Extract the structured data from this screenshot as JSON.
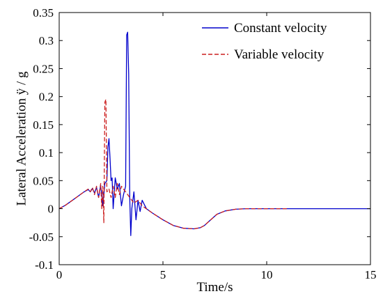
{
  "chart_data": {
    "type": "line",
    "xlabel": "Time/s",
    "ylabel": "Lateral Acceleration ÿ / g",
    "xlim": [
      0,
      15
    ],
    "ylim": [
      -0.1,
      0.35
    ],
    "xticks": [
      "0",
      "5",
      "10",
      "15"
    ],
    "yticks": [
      "-0.1",
      "-0.05",
      "0",
      "0.05",
      "0.1",
      "0.15",
      "0.2",
      "0.25",
      "0.3",
      "0.35"
    ],
    "grid": false,
    "legend_position": "top-right",
    "series": [
      {
        "name": "Constant velocity",
        "color": "#0000cc",
        "style": "solid",
        "x": [
          0,
          0.3,
          0.6,
          0.9,
          1.2,
          1.4,
          1.5,
          1.6,
          1.7,
          1.8,
          1.9,
          2.0,
          2.1,
          2.2,
          2.3,
          2.35,
          2.4,
          2.45,
          2.5,
          2.55,
          2.6,
          2.7,
          2.8,
          2.9,
          3.0,
          3.1,
          3.2,
          3.25,
          3.3,
          3.35,
          3.4,
          3.45,
          3.5,
          3.6,
          3.7,
          3.8,
          3.9,
          4.0,
          4.2,
          4.5,
          5.0,
          5.5,
          6.0,
          6.5,
          6.8,
          7.0,
          7.3,
          7.6,
          8.0,
          8.5,
          9.0,
          9.5,
          10.0,
          11.0,
          12.0,
          13.0,
          14.0,
          15.0
        ],
        "y": [
          0,
          0.006,
          0.014,
          0.022,
          0.03,
          0.034,
          0.03,
          0.036,
          0.028,
          0.038,
          0.02,
          0.042,
          0.005,
          0.045,
          0.05,
          0.11,
          0.125,
          0.09,
          0.05,
          0.055,
          0.0,
          0.055,
          0.035,
          0.045,
          0.005,
          0.025,
          0.04,
          0.31,
          0.315,
          0.24,
          0.02,
          -0.048,
          0.0,
          0.03,
          -0.02,
          0.015,
          -0.005,
          0.015,
          0.0,
          -0.008,
          -0.02,
          -0.03,
          -0.035,
          -0.036,
          -0.034,
          -0.03,
          -0.02,
          -0.01,
          -0.004,
          -0.001,
          0.0,
          0.0,
          0.0,
          0.0,
          0.0,
          0.0,
          0.0,
          0.0
        ]
      },
      {
        "name": "Variable velocity",
        "color": "#cc1f1f",
        "style": "dashed",
        "x": [
          0,
          0.3,
          0.6,
          0.9,
          1.2,
          1.4,
          1.5,
          1.6,
          1.7,
          1.8,
          1.9,
          2.0,
          2.05,
          2.1,
          2.15,
          2.2,
          2.25,
          2.3,
          2.4,
          2.5,
          2.6,
          2.7,
          2.8,
          2.9,
          3.0,
          3.2,
          3.4,
          3.6,
          3.8,
          4.0,
          4.5,
          5.0,
          5.5,
          6.0,
          6.5,
          6.8,
          7.0,
          7.3,
          7.6,
          8.0,
          8.5,
          9.0,
          9.5,
          10.0,
          10.5,
          11.0
        ],
        "y": [
          0,
          0.006,
          0.014,
          0.022,
          0.03,
          0.035,
          0.03,
          0.038,
          0.025,
          0.04,
          0.02,
          0.045,
          0.0,
          0.04,
          -0.025,
          0.19,
          0.195,
          0.03,
          0.035,
          0.02,
          0.04,
          0.02,
          0.045,
          0.025,
          0.04,
          0.03,
          0.02,
          0.01,
          0.015,
          0.005,
          -0.008,
          -0.02,
          -0.03,
          -0.035,
          -0.036,
          -0.034,
          -0.03,
          -0.02,
          -0.01,
          -0.004,
          -0.001,
          0.0,
          0.0,
          0.0,
          0.0,
          0.0
        ]
      }
    ]
  }
}
